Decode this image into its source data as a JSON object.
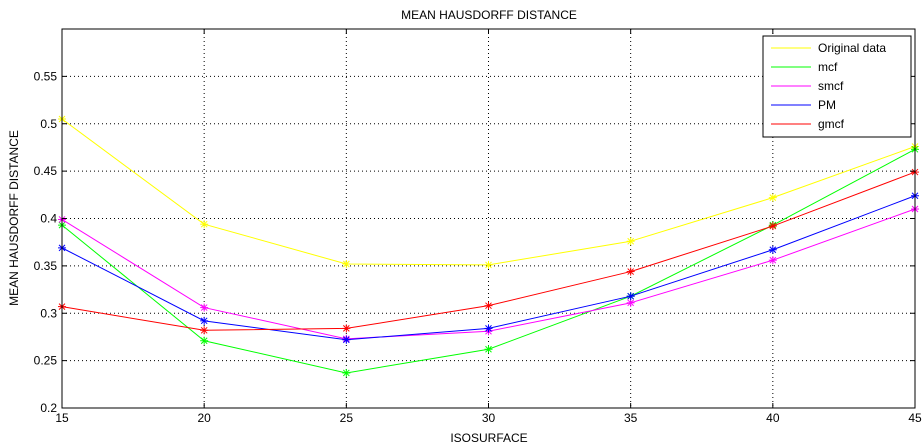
{
  "chart_data": {
    "type": "line",
    "title": "MEAN HAUSDORFF DISTANCE",
    "xlabel": "ISOSURFACE",
    "ylabel": "MEAN HAUSDORFF DISTANCE",
    "x": [
      15,
      20,
      25,
      30,
      35,
      40,
      45
    ],
    "xlim": [
      15,
      45
    ],
    "ylim": [
      0.2,
      0.6
    ],
    "xticks": [
      "15",
      "20",
      "25",
      "30",
      "35",
      "40",
      "45"
    ],
    "yticks": [
      "0.2",
      "0.25",
      "0.3",
      "0.35",
      "0.4",
      "0.45",
      "0.5",
      "0.55"
    ],
    "grid": true,
    "legend_position": "top-right",
    "series": [
      {
        "name": "Original data",
        "color": "#ffff00",
        "values": [
          0.505,
          0.394,
          0.352,
          0.351,
          0.376,
          0.422,
          0.476
        ]
      },
      {
        "name": "mcf",
        "color": "#00ff00",
        "values": [
          0.393,
          0.271,
          0.237,
          0.262,
          0.318,
          0.393,
          0.473
        ]
      },
      {
        "name": "smcf",
        "color": "#ff00ff",
        "values": [
          0.399,
          0.306,
          0.273,
          0.281,
          0.311,
          0.356,
          0.41
        ]
      },
      {
        "name": "PM",
        "color": "#0000ff",
        "values": [
          0.369,
          0.292,
          0.272,
          0.284,
          0.318,
          0.367,
          0.424
        ]
      },
      {
        "name": "gmcf",
        "color": "#ff0000",
        "values": [
          0.307,
          0.282,
          0.284,
          0.308,
          0.344,
          0.392,
          0.449
        ]
      }
    ]
  }
}
